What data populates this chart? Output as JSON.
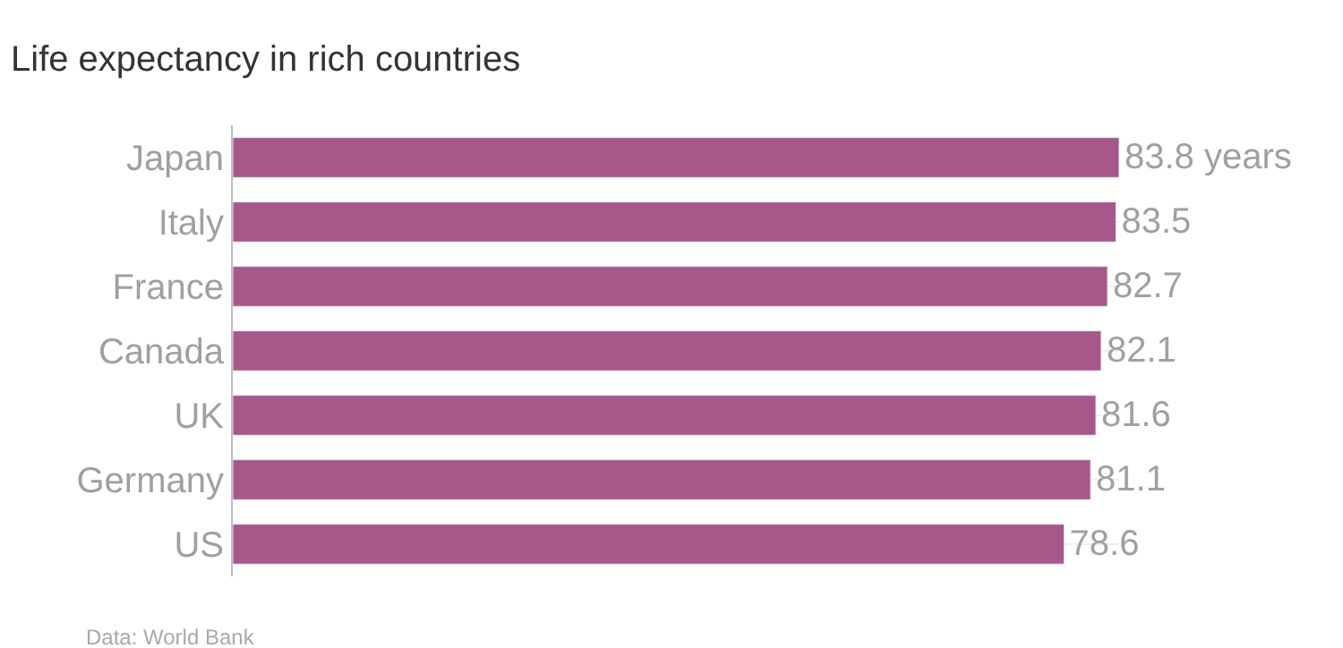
{
  "chart_data": {
    "type": "bar",
    "orientation": "horizontal",
    "title": "Life expectancy in rich countries",
    "categories": [
      "Japan",
      "Italy",
      "France",
      "Canada",
      "UK",
      "Germany",
      "US"
    ],
    "values": [
      83.8,
      83.5,
      82.7,
      82.1,
      81.6,
      81.1,
      78.6
    ],
    "value_labels": [
      "83.8 years",
      "83.5",
      "82.7",
      "82.1",
      "81.6",
      "81.1",
      "78.6"
    ],
    "color": "#a8578a",
    "grid": "y",
    "legend": false,
    "annotations": [
      "Data: World Bank"
    ]
  }
}
